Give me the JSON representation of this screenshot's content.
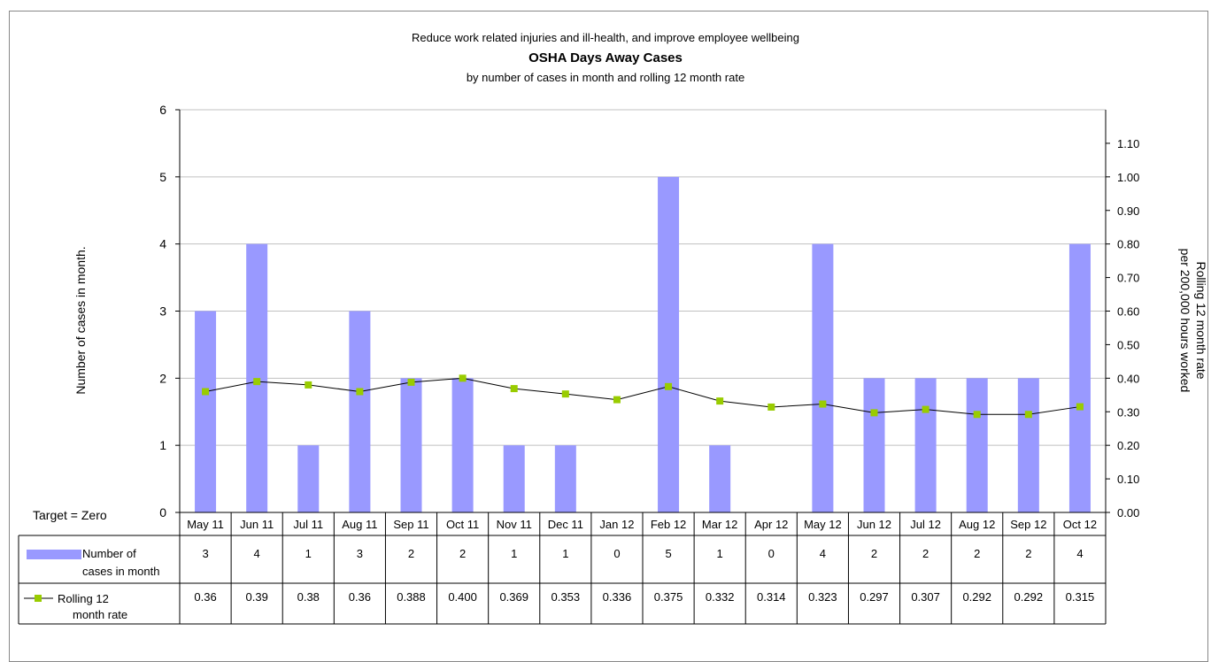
{
  "chart_data": {
    "type": "bar+line",
    "supertitle": "Reduce work related injuries and ill-health, and improve employee wellbeing",
    "title": "OSHA Days Away Cases",
    "subtitle": "by number of cases in month and rolling 12 month rate",
    "categories": [
      "May 11",
      "Jun 11",
      "Jul 11",
      "Aug 11",
      "Sep 11",
      "Oct 11",
      "Nov 11",
      "Dec 11",
      "Jan 12",
      "Feb 12",
      "Mar 12",
      "Apr 12",
      "May 12",
      "Jun 12",
      "Jul 12",
      "Aug 12",
      "Sep 12",
      "Oct 12"
    ],
    "series": [
      {
        "name": "Number of cases in month",
        "type": "bar",
        "axis": "left",
        "color": "#9999ff",
        "values": [
          3,
          4,
          1,
          3,
          2,
          2,
          1,
          1,
          0,
          5,
          1,
          0,
          4,
          2,
          2,
          2,
          2,
          4
        ],
        "labels": [
          "3",
          "4",
          "1",
          "3",
          "2",
          "2",
          "1",
          "1",
          "0",
          "5",
          "1",
          "0",
          "4",
          "2",
          "2",
          "2",
          "2",
          "4"
        ]
      },
      {
        "name": "Rolling 12 month rate",
        "type": "line",
        "axis": "right",
        "color": "#99cc00",
        "line_color": "#000000",
        "values": [
          0.36,
          0.39,
          0.38,
          0.36,
          0.388,
          0.4,
          0.369,
          0.353,
          0.336,
          0.375,
          0.332,
          0.314,
          0.323,
          0.297,
          0.307,
          0.292,
          0.292,
          0.315
        ],
        "labels": [
          "0.36",
          "0.39",
          "0.38",
          "0.36",
          "0.388",
          "0.400",
          "0.369",
          "0.353",
          "0.336",
          "0.375",
          "0.332",
          "0.314",
          "0.323",
          "0.297",
          "0.307",
          "0.292",
          "0.292",
          "0.315"
        ]
      }
    ],
    "ylabel_left": "Number of cases in month.",
    "ylabel_right": [
      "Rolling 12 month rate",
      "per 200,000 hours worked"
    ],
    "ylim_left": [
      0,
      6
    ],
    "yticks_left": [
      "0",
      "1",
      "2",
      "3",
      "4",
      "5",
      "6"
    ],
    "ylim_right": [
      0,
      1.2
    ],
    "yticks_right": [
      "0.00",
      "0.10",
      "0.20",
      "0.30",
      "0.40",
      "0.50",
      "0.60",
      "0.70",
      "0.80",
      "0.90",
      "1.00",
      "1.10"
    ],
    "grid": true,
    "legend": "data-table",
    "table_row_labels": [
      [
        "Number of",
        "cases in month"
      ],
      [
        "Rolling 12",
        "month rate"
      ]
    ],
    "annotation": "Target = Zero"
  }
}
